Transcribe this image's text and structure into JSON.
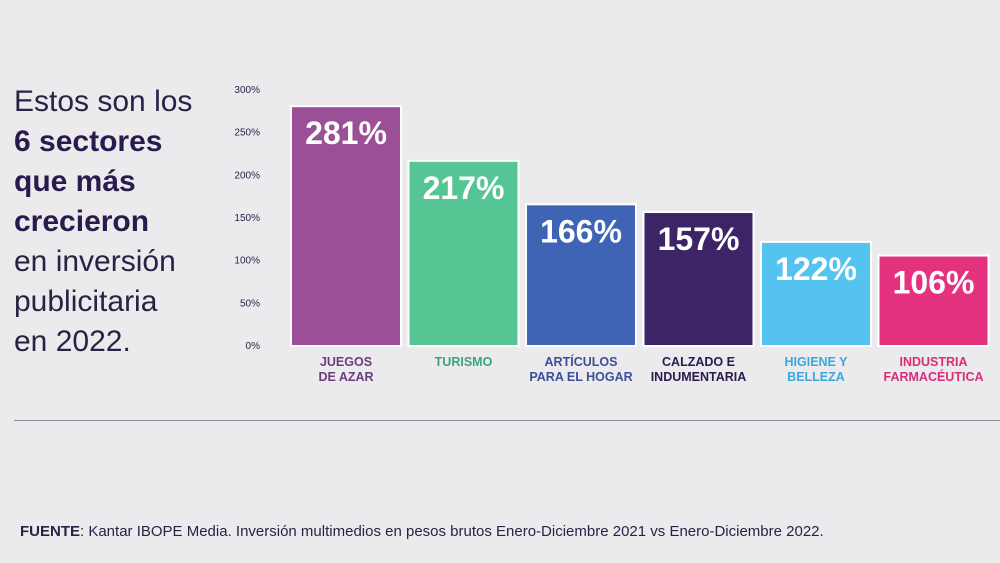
{
  "headline": {
    "line1": "Estos son los",
    "line2": "6 sectores",
    "line3": "que más",
    "line4": "crecieron",
    "line5": "en inversión",
    "line6": "publicitaria",
    "line7": "en 2022."
  },
  "chart_data": {
    "type": "bar",
    "categories": [
      [
        "JUEGOS",
        "DE AZAR"
      ],
      [
        "TURISMO"
      ],
      [
        "ARTÍCULOS",
        "PARA EL HOGAR"
      ],
      [
        "CALZADO E",
        "INDUMENTARIA"
      ],
      [
        "HIGIENE Y",
        "BELLEZA"
      ],
      [
        "INDUSTRIA",
        "FARMACÉUTICA"
      ]
    ],
    "values": [
      281,
      217,
      166,
      157,
      122,
      106
    ],
    "data_labels": [
      "281%",
      "217%",
      "166%",
      "157%",
      "122%",
      "106%"
    ],
    "yticks": [
      "0%",
      "50%",
      "100%",
      "150%",
      "200%",
      "250%",
      "300%"
    ],
    "ylim": [
      0,
      300
    ],
    "bar_colors": [
      "#9b4f96",
      "#55c594",
      "#3f63b5",
      "#3d2466",
      "#55c3ef",
      "#e5327f"
    ],
    "label_colors": [
      "#6a3d7e",
      "#3aa57a",
      "#3d4f9a",
      "#2b1a4e",
      "#3aa8e0",
      "#d62f7a"
    ],
    "grid": false,
    "legend": "none"
  },
  "footer": {
    "label": "FUENTE",
    "text": ": Kantar IBOPE Media. Inversión multimedios en pesos brutos Enero-Diciembre 2021 vs Enero-Diciembre 2022."
  }
}
